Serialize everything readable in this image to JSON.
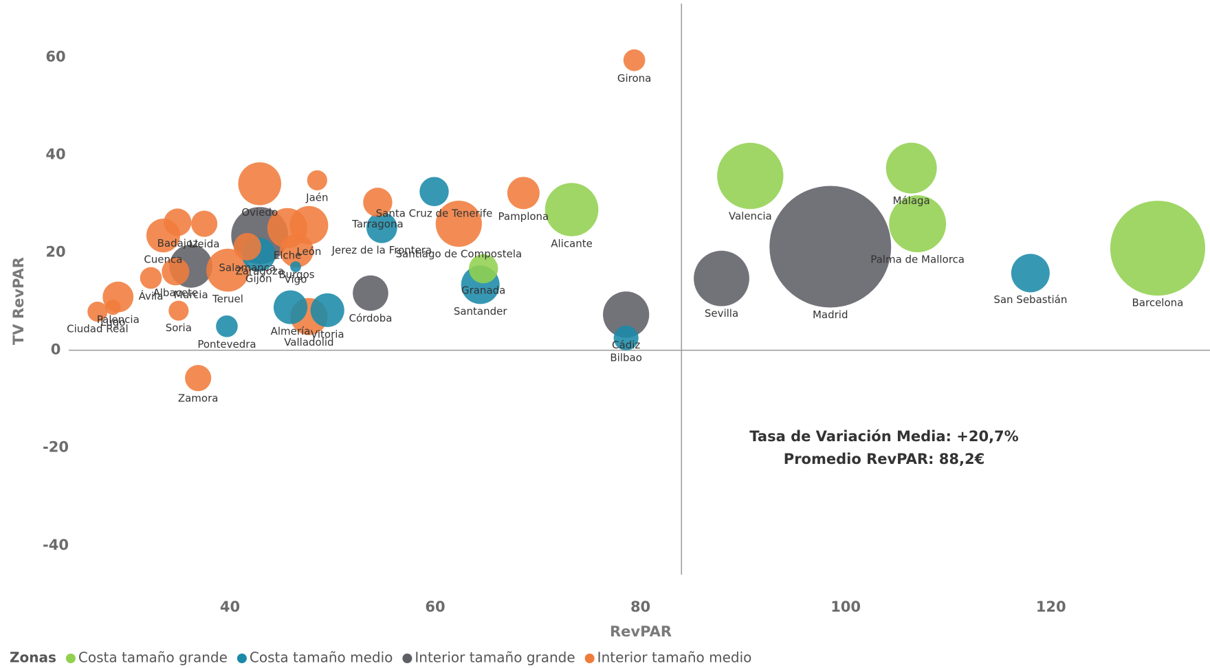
{
  "chart_data": {
    "type": "bubble",
    "x_label": "RevPAR",
    "y_label": "TV RevPAR",
    "xlim": [
      24,
      135
    ],
    "ylim": [
      -46,
      71
    ],
    "xticks": [
      40,
      60,
      80,
      100,
      120
    ],
    "yticks": [
      -40,
      -20,
      0,
      20,
      40,
      60
    ],
    "grid": false,
    "reference_x": 84,
    "reference_y": 0,
    "annotations": [
      "Tasa de Variación Media: +20,7%",
      "Promedio RevPAR: 88,2€"
    ],
    "legend_title": "Zonas",
    "legend_position": "bottom-left",
    "series": [
      {
        "name": "Costa tamaño grande",
        "color": "#92d050",
        "labels": [
          "Barcelona",
          "Valencia",
          "Málaga",
          "Palma de Mallorca",
          "Alicante",
          "Granada"
        ],
        "x": [
          130.4,
          90.7,
          106.4,
          107,
          73.3,
          64.7
        ],
        "values": [
          20.9,
          35.7,
          37.3,
          25.9,
          28.8,
          16.7
        ],
        "sizes": [
          38,
          18.5,
          10.9,
          13.7,
          12,
          3.6
        ]
      },
      {
        "name": "Costa tamaño medio",
        "color": "#1a8aa8",
        "labels": [
          "San Sebastián",
          "Santander",
          "Bilbao",
          "Santa Cruz de Tenerife",
          "Jerez de la Frontera",
          "Vitoria",
          "Pontevedra",
          "Vigo",
          "Gijón",
          "Almería"
        ],
        "x": [
          118,
          64.4,
          78.6,
          59.9,
          54.8,
          49.5,
          39.7,
          46.4,
          42.8,
          45.9
        ],
        "values": [
          15.8,
          13.4,
          2.5,
          32.5,
          25.1,
          8.2,
          4.9,
          17.1,
          19.6,
          8.8
        ],
        "sizes": [
          6.25,
          6.25,
          2.6,
          3.6,
          4,
          4.8,
          2,
          0.5,
          4.8,
          4.8
        ]
      },
      {
        "name": "Interior tamaño grande",
        "color": "#5e5e66",
        "labels": [
          "Madrid",
          "Sevilla",
          "Cádiz",
          "Zaragoza",
          "Murcia",
          "Córdoba"
        ],
        "x": [
          98.5,
          87.9,
          78.6,
          42.9,
          36.2,
          53.7
        ],
        "values": [
          21.2,
          14.7,
          7.3,
          23.5,
          17.2,
          11.7
        ],
        "sizes": [
          62.4,
          13,
          9,
          13.7,
          7.8,
          5.3
        ]
      },
      {
        "name": "Interior tamaño medio",
        "color": "#f07c3c",
        "labels": [
          "Girona",
          "Pamplona",
          "Jaén",
          "Santiago de Compostela",
          "Tarragona",
          "Oviedo",
          "Elche",
          "León",
          "Lleida",
          "Badajoz",
          "Cuenca",
          "Ávila",
          "Albacete",
          "Palencia",
          "Lugo",
          "Ciudad Real",
          "Soria",
          "Teruel",
          "Salamanca",
          "Burgos",
          "Valladolid",
          "Zamora"
        ],
        "x": [
          79.4,
          68.6,
          48.5,
          62.3,
          54.4,
          42.9,
          45.6,
          47.7,
          37.5,
          34.9,
          33.5,
          32.3,
          34.7,
          29.1,
          28.6,
          27.1,
          35.0,
          39.8,
          41.7,
          46.5,
          47.7,
          36.9
        ],
        "values": [
          59.4,
          32.2,
          34.8,
          25.9,
          30.3,
          34.1,
          25.0,
          25.6,
          25.9,
          26.2,
          23.5,
          14.8,
          16.1,
          10.9,
          8.8,
          7.9,
          8.1,
          16.4,
          21.2,
          20.4,
          6.9,
          -5.7
        ],
        "sizes": [
          2,
          4.4,
          1.7,
          9,
          3.6,
          7.8,
          6.8,
          6.25,
          2.9,
          3.2,
          4.8,
          2,
          3.2,
          4,
          1,
          1.7,
          1.7,
          7.8,
          3.2,
          4.8,
          5.8,
          2.9
        ]
      }
    ]
  }
}
